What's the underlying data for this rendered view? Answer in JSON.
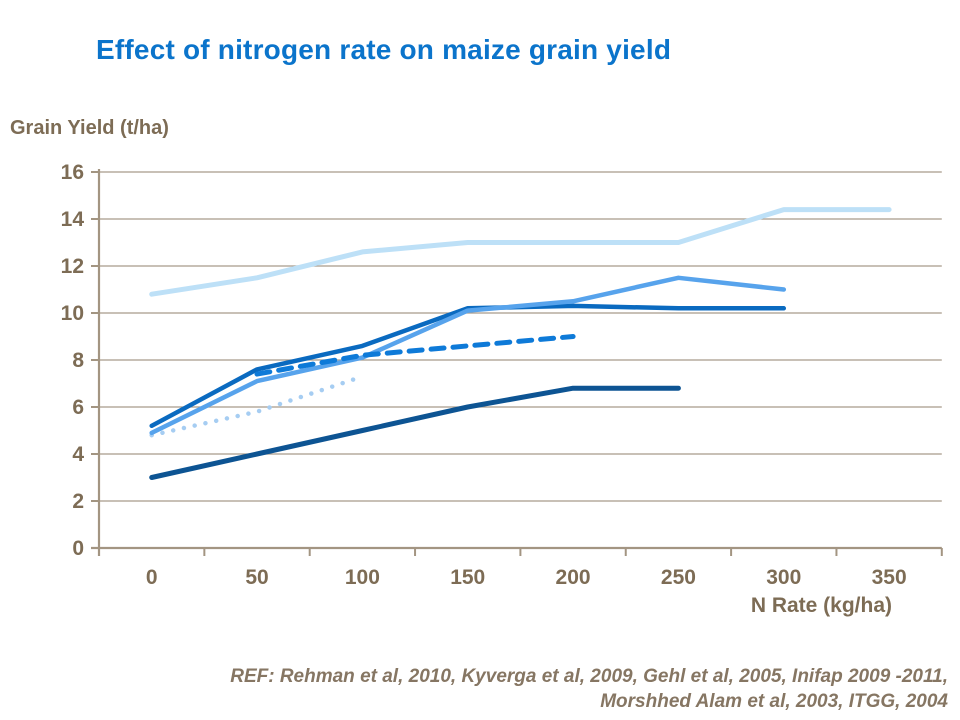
{
  "colors": {
    "title": "#0B74CB",
    "axis_text": "#7D6C55",
    "axis_line": "#A39582",
    "gridline": "#A89A8A",
    "reference_text": "#867663",
    "background": "#FFFFFF"
  },
  "chart_data": {
    "type": "line",
    "title": "Effect of nitrogen rate on maize grain yield",
    "xlabel": "N Rate (kg/ha)",
    "ylabel": "Grain Yield (t/ha)",
    "x_ticks": [
      0,
      50,
      100,
      150,
      200,
      250,
      300,
      350
    ],
    "y_ticks": [
      0,
      2,
      4,
      6,
      8,
      10,
      12,
      14,
      16
    ],
    "ylim": [
      0,
      16
    ],
    "grid": "horizontal",
    "legend": "none",
    "series": [
      {
        "name": "series-lightest-blue",
        "color": "#BDE0F7",
        "style": "solid",
        "width": 5,
        "x": [
          0,
          50,
          100,
          150,
          200,
          250,
          300,
          350
        ],
        "y": [
          10.8,
          11.5,
          12.6,
          13.0,
          13.0,
          13.0,
          14.4,
          14.4
        ]
      },
      {
        "name": "series-dotted-pale-blue",
        "color": "#A6CDF2",
        "style": "dotted",
        "width": 4.5,
        "x": [
          0,
          50,
          100
        ],
        "y": [
          4.8,
          5.8,
          7.3
        ]
      },
      {
        "name": "series-navy",
        "color": "#0D5493",
        "style": "solid",
        "width": 5,
        "x": [
          0,
          50,
          100,
          150,
          200,
          250
        ],
        "y": [
          3.0,
          4.0,
          5.0,
          6.0,
          6.8,
          6.8
        ]
      },
      {
        "name": "series-medium-dark-blue",
        "color": "#0A6AC0",
        "style": "solid",
        "width": 4.5,
        "x": [
          0,
          50,
          100,
          150,
          200,
          250,
          300
        ],
        "y": [
          5.2,
          7.6,
          8.6,
          10.2,
          10.3,
          10.2,
          10.2
        ]
      },
      {
        "name": "series-sky-blue",
        "color": "#57A3EC",
        "style": "solid",
        "width": 4.5,
        "x": [
          0,
          50,
          100,
          150,
          200,
          250,
          300
        ],
        "y": [
          4.9,
          7.1,
          8.1,
          10.1,
          10.5,
          11.5,
          11.0
        ]
      },
      {
        "name": "series-dashed-bright-blue",
        "color": "#0E7AD8",
        "style": "dashed",
        "width": 5,
        "x": [
          50,
          100,
          150,
          200
        ],
        "y": [
          7.4,
          8.2,
          8.6,
          9.0
        ]
      }
    ]
  },
  "footer": {
    "line1": "REF: Rehman et al, 2010, Kyverga et al, 2009, Gehl et al, 2005, Inifap 2009 -2011,",
    "line2": "Morshhed Alam et al, 2003, ITGG, 2004"
  }
}
